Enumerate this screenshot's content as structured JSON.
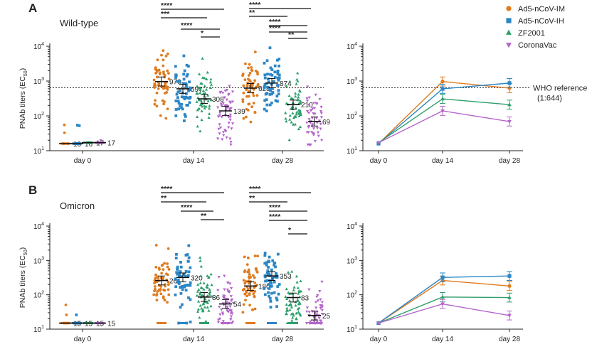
{
  "legend": [
    {
      "name": "Ad5-nCoV-IM",
      "color": "#E07B1E",
      "marker": "circle"
    },
    {
      "name": "Ad5-nCoV-IH",
      "color": "#2B86C5",
      "marker": "square"
    },
    {
      "name": "ZF2001",
      "color": "#2E9E6B",
      "marker": "triangle"
    },
    {
      "name": "CoronaVac",
      "color": "#B366C9",
      "marker": "triangle-down"
    }
  ],
  "reference": {
    "label_line1": "WHO reference",
    "label_line2": "(1:644)",
    "value": 644
  },
  "chart_data": [
    {
      "panel": "A",
      "title": "Wild-type",
      "type": "scatter",
      "ylabel": "PNAb titers (EC50)",
      "yscale": "log",
      "ylim": [
        10,
        10000
      ],
      "yticks": [
        "10^1",
        "10^2",
        "10^3",
        "10^4"
      ],
      "categories": [
        "day 0",
        "day 14",
        "day 28"
      ],
      "series": [
        {
          "name": "Ad5-nCoV-IM",
          "gmt": [
            16,
            970,
            628
          ]
        },
        {
          "name": "Ad5-nCoV-IH",
          "gmt": [
            16,
            597,
            874
          ]
        },
        {
          "name": "ZF2001",
          "gmt": [
            17,
            308,
            210
          ]
        },
        {
          "name": "CoronaVac",
          "gmt": [
            17,
            139,
            69
          ]
        }
      ],
      "value_labels": [
        [
          "16",
          "16",
          "17",
          "17"
        ],
        [
          "970",
          "597",
          "308",
          "139"
        ],
        [
          "628",
          "874",
          "210",
          "69"
        ]
      ],
      "significance": [
        [
          "****",
          "***",
          "****",
          "*"
        ],
        [
          "****",
          "**",
          "****",
          "****",
          "**"
        ]
      ]
    },
    {
      "panel": "A-right",
      "type": "line",
      "yscale": "log",
      "ylim": [
        10,
        10000
      ],
      "yticks": [
        "10^1",
        "10^2",
        "10^3",
        "10^4"
      ],
      "categories": [
        "day 0",
        "day 14",
        "day 28"
      ],
      "series": [
        {
          "name": "Ad5-nCoV-IM",
          "values": [
            16,
            970,
            628
          ]
        },
        {
          "name": "Ad5-nCoV-IH",
          "values": [
            16,
            597,
            874
          ]
        },
        {
          "name": "ZF2001",
          "values": [
            17,
            308,
            210
          ]
        },
        {
          "name": "CoronaVac",
          "values": [
            17,
            139,
            69
          ]
        }
      ]
    },
    {
      "panel": "B",
      "title": "Omicron",
      "type": "scatter",
      "ylabel": "PNAb titers (EC50)",
      "yscale": "log",
      "ylim": [
        10,
        10000
      ],
      "yticks": [
        "10^1",
        "10^2",
        "10^3",
        "10^4"
      ],
      "categories": [
        "day 0",
        "day 14",
        "day 28"
      ],
      "series": [
        {
          "name": "Ad5-nCoV-IM",
          "gmt": [
            15,
            261,
            180
          ]
        },
        {
          "name": "Ad5-nCoV-IH",
          "gmt": [
            15,
            320,
            353
          ]
        },
        {
          "name": "ZF2001",
          "gmt": [
            15,
            86,
            83
          ]
        },
        {
          "name": "CoronaVac",
          "gmt": [
            15,
            54,
            25
          ]
        }
      ],
      "value_labels": [
        [
          "15",
          "15",
          "15",
          "15"
        ],
        [
          "261",
          "320",
          "86",
          "54"
        ],
        [
          "180",
          "353",
          "83",
          "25"
        ]
      ],
      "significance": [
        [
          "****",
          "**",
          "****",
          "**"
        ],
        [
          "****",
          "**",
          "****",
          "****",
          "*"
        ]
      ]
    },
    {
      "panel": "B-right",
      "type": "line",
      "yscale": "log",
      "ylim": [
        10,
        10000
      ],
      "yticks": [
        "10^1",
        "10^2",
        "10^3",
        "10^4"
      ],
      "categories": [
        "day 0",
        "day 14",
        "day 28"
      ],
      "series": [
        {
          "name": "Ad5-nCoV-IM",
          "values": [
            15,
            261,
            180
          ]
        },
        {
          "name": "Ad5-nCoV-IH",
          "values": [
            15,
            320,
            353
          ]
        },
        {
          "name": "ZF2001",
          "values": [
            15,
            86,
            83
          ]
        },
        {
          "name": "CoronaVac",
          "values": [
            15,
            54,
            25
          ]
        }
      ]
    }
  ]
}
